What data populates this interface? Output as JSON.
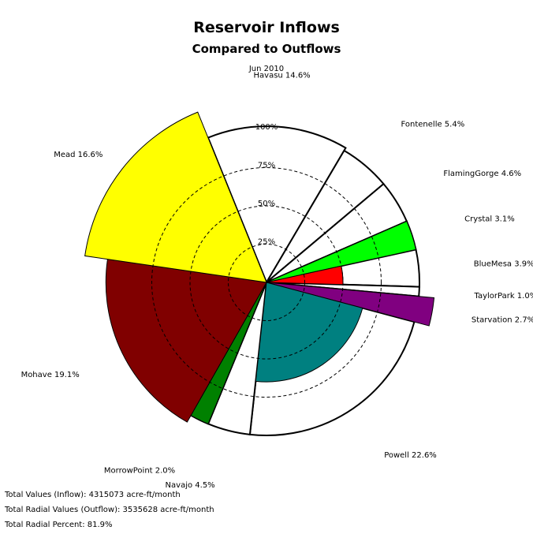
{
  "chart_data": {
    "type": "polar-area",
    "title": "Reservoir Inflows",
    "subtitle": "Compared to Outflows",
    "date": "Jun 2010",
    "radial_labels": [
      "25%",
      "50%",
      "75%",
      "100%"
    ],
    "radial_levels": [
      0.25,
      0.5,
      0.75,
      1.0
    ],
    "slices": [
      {
        "name": "Havasu",
        "label": "Havasu  14.6%",
        "share": 14.6,
        "outflow_ratio": 1.02,
        "inflow_ratio": 0.0,
        "color": "#ff00ff"
      },
      {
        "name": "Fontenelle",
        "label": "Fontenelle  5.4%",
        "share": 5.4,
        "outflow_ratio": 1.0,
        "inflow_ratio": 0.0,
        "color": "#00ffff"
      },
      {
        "name": "FlamingGorge",
        "label": "FlamingGorge  4.6%",
        "share": 4.6,
        "outflow_ratio": 1.0,
        "inflow_ratio": 0.0,
        "color": "#0000ff"
      },
      {
        "name": "Crystal",
        "label": "Crystal  3.1%",
        "share": 3.1,
        "outflow_ratio": 1.0,
        "inflow_ratio": 1.0,
        "color": "#00ff00"
      },
      {
        "name": "BlueMesa",
        "label": "BlueMesa  3.9%",
        "share": 3.9,
        "outflow_ratio": 1.0,
        "inflow_ratio": 0.5,
        "color": "#ff0000"
      },
      {
        "name": "TaylorPark",
        "label": "TaylorPark  1.0%",
        "share": 1.0,
        "outflow_ratio": 1.0,
        "inflow_ratio": 0.0,
        "color": "#ffffff"
      },
      {
        "name": "Starvation",
        "label": "Starvation  2.7%",
        "share": 2.7,
        "outflow_ratio": 1.0,
        "inflow_ratio": 1.1,
        "color": "#800080"
      },
      {
        "name": "Powell",
        "label": "Powell  22.6%",
        "share": 22.6,
        "outflow_ratio": 1.0,
        "inflow_ratio": 0.65,
        "color": "#008080"
      },
      {
        "name": "Navajo",
        "label": "Navajo  4.5%",
        "share": 4.5,
        "outflow_ratio": 1.0,
        "inflow_ratio": 0.0,
        "color": "#000080"
      },
      {
        "name": "MorrowPoint",
        "label": "MorrowPoint  2.0%",
        "share": 2.0,
        "outflow_ratio": 1.0,
        "inflow_ratio": 1.0,
        "color": "#008000"
      },
      {
        "name": "Mohave",
        "label": "Mohave  19.1%",
        "share": 19.1,
        "outflow_ratio": 1.0,
        "inflow_ratio": 1.05,
        "color": "#800000"
      },
      {
        "name": "Mead",
        "label": "Mead  16.6%",
        "share": 16.6,
        "outflow_ratio": 1.0,
        "inflow_ratio": 1.2,
        "color": "#ffff00"
      }
    ]
  },
  "footer": {
    "inflow": "Total Values (Inflow): 4315073 acre-ft/month",
    "outflow": "Total Radial Values (Outflow): 3535628 acre-ft/month",
    "percent": "Total Radial Percent: 81.9%"
  }
}
